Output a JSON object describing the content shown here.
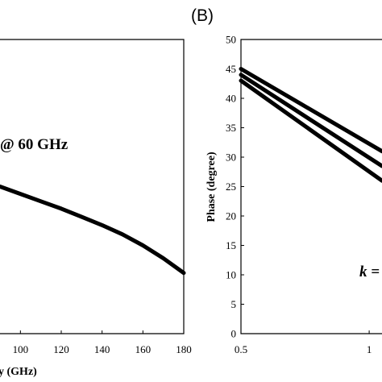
{
  "chart_data": [
    {
      "type": "line",
      "panel": "left",
      "xlabel": "y (GHz)",
      "ylabel": "",
      "xlim": [
        90,
        180
      ],
      "x_ticks": [
        100,
        120,
        140,
        160,
        180
      ],
      "annotation": "@ 60 GHz",
      "series": [
        {
          "x": [
            90,
            100,
            110,
            120,
            130,
            140,
            150,
            160,
            170,
            180
          ],
          "values": [
            0.8,
            0.76,
            0.72,
            0.68,
            0.635,
            0.59,
            0.54,
            0.48,
            0.41,
            0.33
          ]
        }
      ],
      "ylim": [
        0,
        1.6
      ]
    },
    {
      "type": "line",
      "panel": "right",
      "panel_label": "(B)",
      "xlabel": "",
      "ylabel": "Phase (degree)",
      "xlim": [
        0.5,
        1.05
      ],
      "ylim": [
        0,
        50
      ],
      "x_ticks": [
        0.5,
        1
      ],
      "y_ticks": [
        0,
        5,
        10,
        15,
        20,
        25,
        30,
        35,
        40,
        45,
        50
      ],
      "annotation": "k =",
      "series": [
        {
          "x": [
            0.5,
            1.05
          ],
          "values": [
            45,
            31
          ]
        },
        {
          "x": [
            0.5,
            1.05
          ],
          "values": [
            44,
            28.5
          ]
        },
        {
          "x": [
            0.5,
            1.05
          ],
          "values": [
            43,
            26
          ]
        }
      ]
    }
  ]
}
